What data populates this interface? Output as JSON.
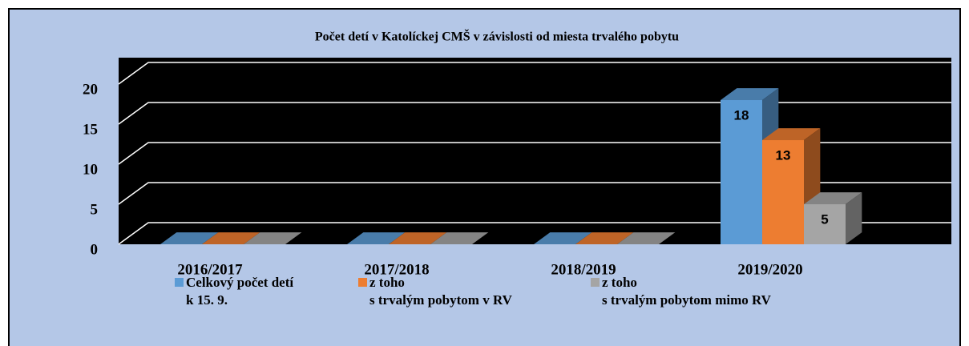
{
  "chart_data": {
    "type": "bar3d",
    "title": "Počet detí v Katolíckej CMŠ v závislosti od miesta trvalého pobytu",
    "categories": [
      "2016/2017",
      "2017/2018",
      "2018/2019",
      "2019/2020"
    ],
    "series": [
      {
        "name": "Celkový počet detí\nk 15. 9.",
        "color": "#5b9bd5",
        "values": [
          0,
          0,
          0,
          18
        ]
      },
      {
        "name": "z toho\ns trvalým pobytom v RV",
        "color": "#ed7d31",
        "values": [
          0,
          0,
          0,
          13
        ]
      },
      {
        "name": "z toho\ns trvalým pobytom  mimo RV",
        "color": "#a5a5a5",
        "values": [
          0,
          0,
          0,
          5
        ]
      }
    ],
    "ylim": [
      0,
      20
    ],
    "yticks": [
      0,
      5,
      10,
      15,
      20
    ],
    "grid": true,
    "legend": "bottom"
  }
}
